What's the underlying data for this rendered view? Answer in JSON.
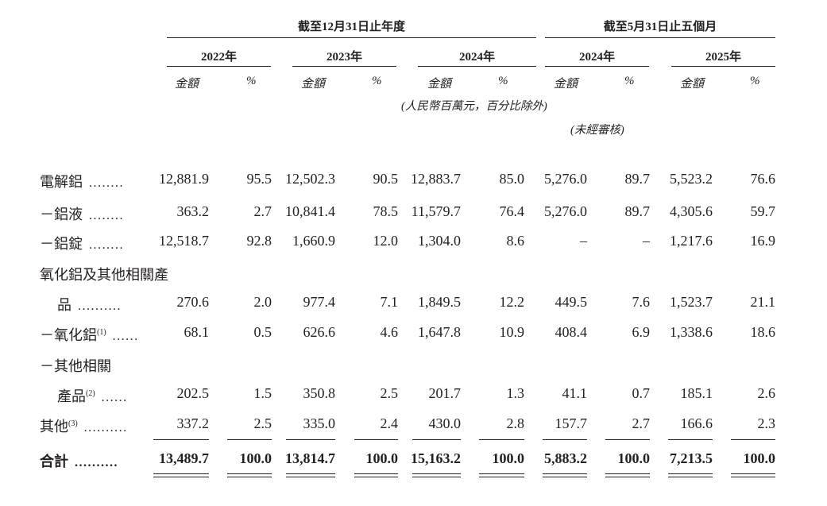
{
  "header": {
    "period_fy": "截至12月31日止年度",
    "period_5m": "截至5月31日止五個月",
    "years": [
      "2022年",
      "2023年",
      "2024年",
      "2024年",
      "2025年"
    ],
    "amount_label": "金額",
    "pct_label": "%",
    "unit_note": "(人民幣百萬元，百分比除外)",
    "unaudited_note": "(未經審核)"
  },
  "rows": [
    {
      "label": "電解鋁",
      "sup": "",
      "leader": "........",
      "values": [
        "12,881.9",
        "95.5",
        "12,502.3",
        "90.5",
        "12,883.7",
        "85.0",
        "5,276.0",
        "89.7",
        "5,523.2",
        "76.6"
      ]
    },
    {
      "label": "－鋁液",
      "sup": "",
      "leader": "........",
      "values": [
        "363.2",
        "2.7",
        "10,841.4",
        "78.5",
        "11,579.7",
        "76.4",
        "5,276.0",
        "89.7",
        "4,305.6",
        "59.7"
      ]
    },
    {
      "label": "－鋁錠",
      "sup": "",
      "leader": "........",
      "values": [
        "12,518.7",
        "92.8",
        "1,660.9",
        "12.0",
        "1,304.0",
        "8.6",
        "–",
        "–",
        "1,217.6",
        "16.9"
      ]
    },
    {
      "label": "氧化鋁及其他相關產",
      "sup": "",
      "leader": "",
      "values": []
    },
    {
      "label": "品",
      "sup": "",
      "leader": "..........",
      "values": [
        "270.6",
        "2.0",
        "977.4",
        "7.1",
        "1,849.5",
        "12.2",
        "449.5",
        "7.6",
        "1,523.7",
        "21.1"
      ]
    },
    {
      "label": "－氧化鋁",
      "sup": "(1)",
      "leader": "......",
      "values": [
        "68.1",
        "0.5",
        "626.6",
        "4.6",
        "1,647.8",
        "10.9",
        "408.4",
        "6.9",
        "1,338.6",
        "18.6"
      ]
    },
    {
      "label": "－其他相關",
      "sup": "",
      "leader": "",
      "values": []
    },
    {
      "label": "產品",
      "sup": "(2)",
      "leader": "......",
      "values": [
        "202.5",
        "1.5",
        "350.8",
        "2.5",
        "201.7",
        "1.3",
        "41.1",
        "0.7",
        "185.1",
        "2.6"
      ]
    },
    {
      "label": "其他",
      "sup": "(3)",
      "leader": "..........",
      "values": [
        "337.2",
        "2.5",
        "335.0",
        "2.4",
        "430.0",
        "2.8",
        "157.7",
        "2.7",
        "166.6",
        "2.3"
      ]
    },
    {
      "label": "合計",
      "sup": "",
      "leader": "..........",
      "values": [
        "13,489.7",
        "100.0",
        "13,814.7",
        "100.0",
        "15,163.2",
        "100.0",
        "5,883.2",
        "100.0",
        "7,213.5",
        "100.0"
      ]
    }
  ]
}
